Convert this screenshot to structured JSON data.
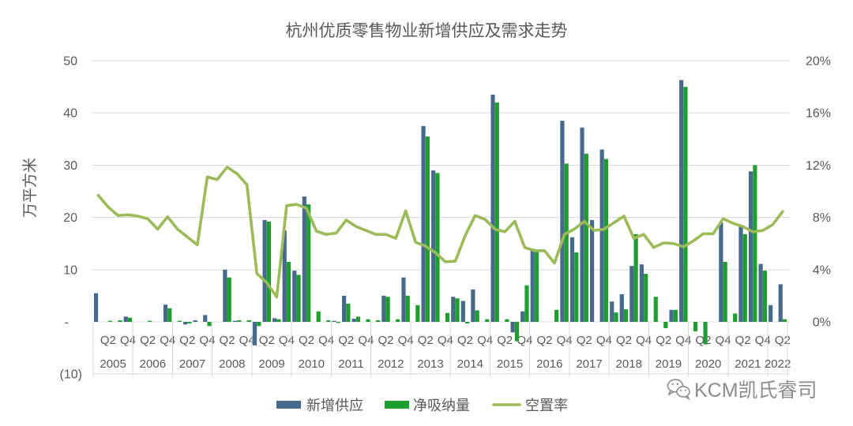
{
  "chart_data": {
    "type": "bar",
    "title": "杭州优质零售物业新增供应及需求走势",
    "ylabel": "万平方米",
    "years": [
      "2005",
      "2006",
      "2007",
      "2008",
      "2009",
      "2010",
      "2011",
      "2012",
      "2013",
      "2014",
      "2015",
      "2016",
      "2017",
      "2018",
      "2019",
      "2020",
      "2021",
      "2022"
    ],
    "quarter_ticks": [
      {
        "quarter": 2,
        "label": "Q2"
      },
      {
        "quarter": 4,
        "label": "Q4"
      }
    ],
    "ylim": [
      -10,
      50
    ],
    "yticks": [
      {
        "value": 50,
        "label": "50"
      },
      {
        "value": 40,
        "label": "40"
      },
      {
        "value": 30,
        "label": "30"
      },
      {
        "value": 20,
        "label": "20"
      },
      {
        "value": 10,
        "label": "10"
      },
      {
        "value": 0,
        "label": "-"
      },
      {
        "value": -10,
        "label": "(10)"
      }
    ],
    "y2lim": [
      0,
      20
    ],
    "y2ticks": [
      {
        "value": 20,
        "label": "20%"
      },
      {
        "value": 16,
        "label": "16%"
      },
      {
        "value": 12,
        "label": "12%"
      },
      {
        "value": 8,
        "label": "8%"
      },
      {
        "value": 4,
        "label": "4%"
      },
      {
        "value": 0,
        "label": "0%"
      }
    ],
    "grid": true,
    "legend_position": "bottom",
    "series": [
      {
        "name": "新增供应",
        "type": "bar",
        "axis": "left",
        "color": "#47698c",
        "values": [
          5.5,
          0,
          0,
          1.0,
          0,
          0,
          0,
          3.3,
          0,
          -0.5,
          0.3,
          1.3,
          0,
          10.0,
          0.2,
          0,
          -4.5,
          19.5,
          0.7,
          17.5,
          9.8,
          24.0,
          0,
          0,
          0.2,
          5.0,
          0.6,
          0,
          0,
          5.0,
          0,
          8.5,
          0,
          37.5,
          29.0,
          0,
          4.8,
          4.0,
          6.2,
          0,
          43.5,
          0,
          -2.0,
          2.0,
          14.0,
          0,
          0,
          38.5,
          16.2,
          37.2,
          19.5,
          33.0,
          3.9,
          5.3,
          10.7,
          11.0,
          0,
          0,
          2.3,
          46.3,
          0,
          0,
          0,
          19.0,
          0,
          18.2,
          28.8,
          11.1,
          3.2,
          7.2
        ]
      },
      {
        "name": "净吸纳量",
        "type": "bar",
        "axis": "left",
        "color": "#1f9e30",
        "values": [
          0,
          0.2,
          0.3,
          0.8,
          0,
          0.2,
          0,
          2.6,
          0.2,
          -0.3,
          0,
          -0.8,
          0,
          8.5,
          0.3,
          0.3,
          -0.8,
          19.2,
          0.5,
          11.5,
          9.0,
          22.5,
          2.0,
          0.3,
          -0.2,
          3.5,
          1.0,
          0.5,
          0.3,
          4.8,
          0.5,
          5.0,
          3.2,
          35.5,
          28.5,
          1.7,
          4.5,
          -0.3,
          2.2,
          0.5,
          42.0,
          0.5,
          -3.7,
          7.0,
          13.8,
          0,
          2.3,
          30.3,
          13.3,
          32.2,
          0,
          31.2,
          1.8,
          2.4,
          16.8,
          9.2,
          4.8,
          -1.2,
          2.3,
          45.0,
          -1.8,
          -4.3,
          0,
          11.5,
          1.6,
          16.8,
          30.0,
          9.8,
          0,
          0.5
        ]
      },
      {
        "name": "空置率",
        "type": "line",
        "axis": "right",
        "color": "#9bbb59",
        "values": [
          9.7,
          8.8,
          8.15,
          8.2,
          8.1,
          7.9,
          7.1,
          8.05,
          7.1,
          6.5,
          5.9,
          11.1,
          10.9,
          11.85,
          11.35,
          10.5,
          3.7,
          3.0,
          1.9,
          8.9,
          9.0,
          8.7,
          6.95,
          6.7,
          6.8,
          7.8,
          7.3,
          7.0,
          6.7,
          6.7,
          6.4,
          8.5,
          6.1,
          5.8,
          5.3,
          4.6,
          4.65,
          6.6,
          8.15,
          7.85,
          7.1,
          6.9,
          7.7,
          5.7,
          5.45,
          5.45,
          4.5,
          6.7,
          7.1,
          7.7,
          7.0,
          7.1,
          7.6,
          8.1,
          6.4,
          6.7,
          5.7,
          6.05,
          6.0,
          5.75,
          6.2,
          6.75,
          6.75,
          7.9,
          7.55,
          7.3,
          6.9,
          7.0,
          7.45,
          8.45
        ]
      }
    ]
  },
  "watermark": {
    "text": "KCM凯氏睿司",
    "icon": "wechat-icon"
  }
}
